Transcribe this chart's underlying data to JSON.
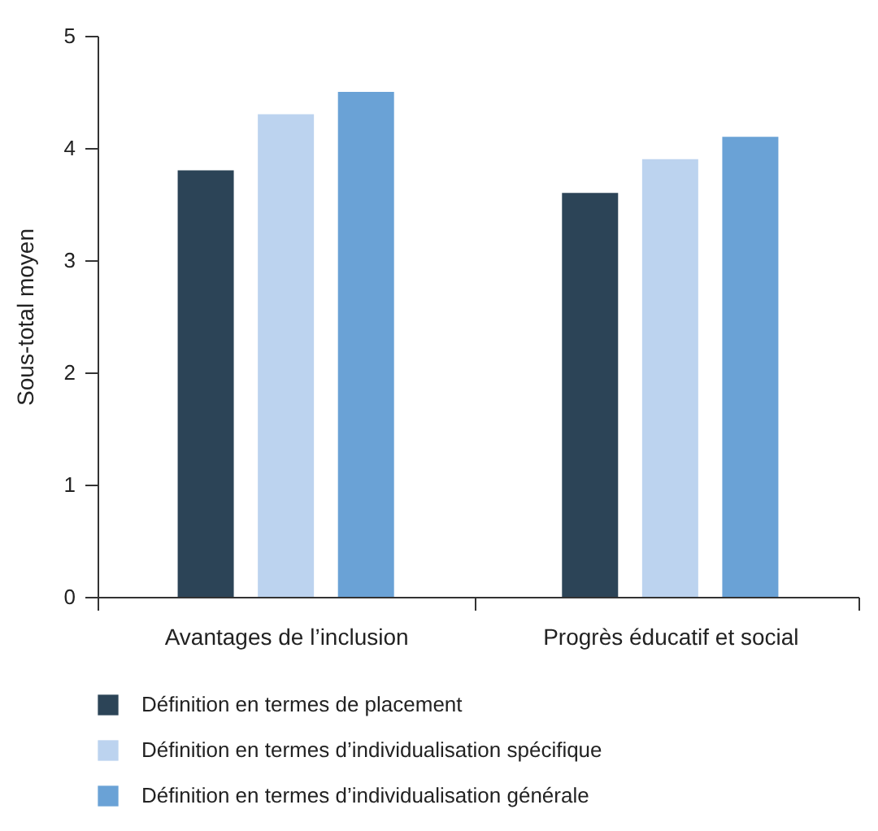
{
  "chart_data": {
    "type": "bar",
    "ylabel": "Sous-total moyen",
    "categories": [
      "Avantages de l’inclusion",
      "Progrès éducatif et social"
    ],
    "series": [
      {
        "name": "Définition en termes de placement",
        "color": "#2c4457",
        "values": [
          3.8,
          3.6
        ]
      },
      {
        "name": "Définition en termes d’individualisation spécifique",
        "color": "#bcd3ef",
        "values": [
          4.3,
          3.9
        ]
      },
      {
        "name": "Définition en termes d’individualisation générale",
        "color": "#6aa2d6",
        "values": [
          4.5,
          4.1
        ]
      }
    ],
    "ylim": [
      0,
      5
    ],
    "yticks": [
      0,
      1,
      2,
      3,
      4,
      5
    ],
    "grid": false,
    "legend": "bottom"
  }
}
